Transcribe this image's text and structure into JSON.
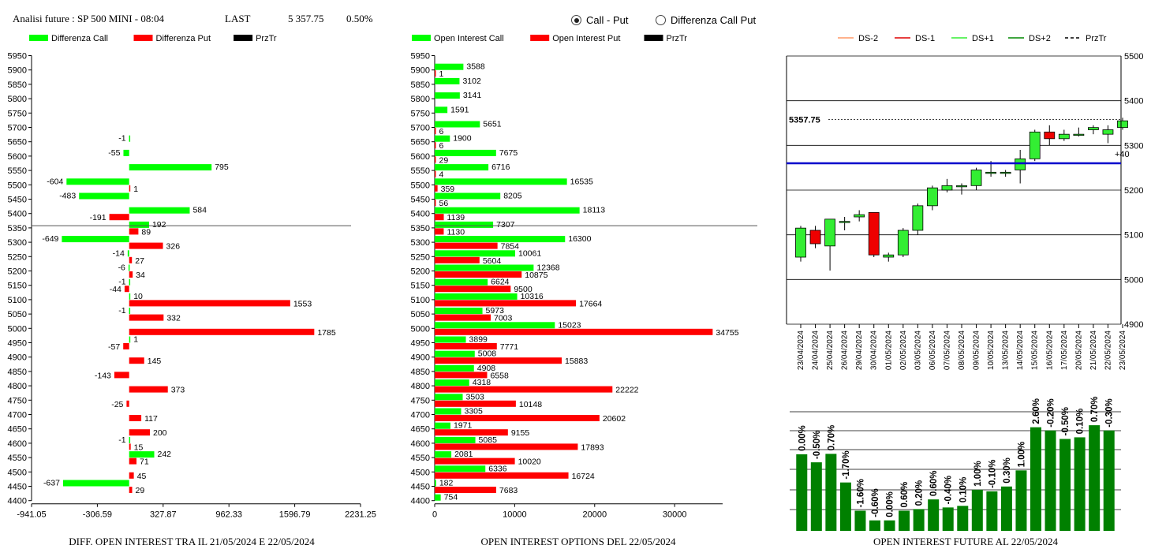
{
  "header": {
    "title": "Analisi future : SP 500 MINI - 08:04",
    "last_label": "LAST",
    "last_value": "5 357.75",
    "change": "0.50%"
  },
  "radios": [
    {
      "label": "Call - Put",
      "selected": true
    },
    {
      "label": "Differenza Call Put",
      "selected": false
    }
  ],
  "colors": {
    "green": "#00ff00",
    "red": "#ff0000",
    "black": "#000000",
    "dark_green": "#008000",
    "blue": "#0000cc"
  },
  "chart_data": [
    {
      "type": "bar",
      "orientation": "horizontal",
      "footer": "DIFF. OPEN INTEREST TRA IL 21/05/2024 E 22/05/2024",
      "legend": [
        "Differenza Call",
        "Differenza Put",
        "PrzTr"
      ],
      "categories": [
        5950,
        5900,
        5850,
        5800,
        5750,
        5700,
        5650,
        5600,
        5550,
        5500,
        5450,
        5400,
        5350,
        5300,
        5250,
        5200,
        5150,
        5100,
        5050,
        5000,
        4950,
        4900,
        4850,
        4800,
        4750,
        4700,
        4650,
        4600,
        4550,
        4500,
        4450,
        4400
      ],
      "series": [
        {
          "name": "Differenza Call",
          "values": [
            null,
            null,
            null,
            null,
            null,
            null,
            -1,
            -55,
            795,
            -604,
            -483,
            584,
            192,
            -649,
            -14,
            -6,
            -1,
            10,
            -1,
            null,
            1,
            null,
            null,
            null,
            null,
            null,
            null,
            -1,
            242,
            null,
            -637,
            null
          ]
        },
        {
          "name": "Differenza Put",
          "values": [
            null,
            null,
            null,
            null,
            null,
            null,
            null,
            null,
            null,
            1,
            null,
            -191,
            89,
            326,
            27,
            34,
            -44,
            1553,
            332,
            1785,
            -57,
            145,
            -143,
            373,
            -25,
            117,
            200,
            15,
            71,
            45,
            29,
            null
          ]
        }
      ],
      "xticks": [
        "-941.05",
        "-306.59",
        "327.87",
        "962.33",
        "1596.79",
        "2231.25"
      ],
      "xlim": [
        -941.05,
        2231.25
      ],
      "price_line": 5357.75
    },
    {
      "type": "bar",
      "orientation": "horizontal",
      "footer": "OPEN INTEREST OPTIONS DEL 22/05/2024",
      "legend": [
        "Open Interest Call",
        "Open Interest Put",
        "PrzTr"
      ],
      "categories": [
        5950,
        5900,
        5850,
        5800,
        5750,
        5700,
        5650,
        5600,
        5550,
        5500,
        5450,
        5400,
        5350,
        5300,
        5250,
        5200,
        5150,
        5100,
        5050,
        5000,
        4950,
        4900,
        4850,
        4800,
        4750,
        4700,
        4650,
        4600,
        4550,
        4500,
        4450,
        4400
      ],
      "series": [
        {
          "name": "Open Interest Call",
          "values": [
            null,
            3588,
            3102,
            3141,
            1591,
            5651,
            1900,
            7675,
            6716,
            16535,
            8205,
            18113,
            7307,
            16300,
            10061,
            12368,
            6624,
            10316,
            5973,
            15023,
            3899,
            5008,
            4908,
            4318,
            3503,
            3305,
            1971,
            5085,
            2081,
            6336,
            182,
            754
          ]
        },
        {
          "name": "Open Interest Put",
          "values": [
            null,
            1,
            null,
            null,
            null,
            6,
            6,
            29,
            4,
            359,
            56,
            1139,
            1130,
            7854,
            5604,
            10875,
            9500,
            17664,
            7003,
            34755,
            7771,
            15883,
            6558,
            22222,
            10148,
            20602,
            9155,
            17893,
            10020,
            16724,
            7683,
            null
          ]
        }
      ],
      "xticks": [
        "0",
        "10000",
        "20000",
        "30000"
      ],
      "xlim": [
        0,
        36000
      ],
      "price_line": 5357.75
    },
    {
      "type": "candlestick",
      "legend": [
        "DS-2",
        "DS-1",
        "DS+1",
        "DS+2",
        "PrzTr"
      ],
      "legend_colors": [
        "#ff9966",
        "#dd0000",
        "#33ee33",
        "#008800",
        "#000000"
      ],
      "last_label": "5357.75",
      "right_annotation": "+40",
      "blue_level": 5260,
      "yticks": [
        "5500",
        "5400",
        "5300",
        "5200",
        "5100",
        "5000",
        "4900"
      ],
      "ylim": [
        4900,
        5500
      ],
      "x": [
        "23/04/2024",
        "24/04/2024",
        "25/04/2024",
        "26/04/2024",
        "29/04/2024",
        "30/04/2024",
        "01/05/2024",
        "02/05/2024",
        "03/05/2024",
        "06/05/2024",
        "07/05/2024",
        "08/05/2024",
        "09/05/2024",
        "10/05/2024",
        "13/05/2024",
        "14/05/2024",
        "15/05/2024",
        "16/05/2024",
        "17/05/2024",
        "20/05/2024",
        "21/05/2024",
        "22/05/2024",
        "23/05/2024"
      ],
      "open": [
        5050,
        5110,
        5075,
        5130,
        5140,
        5150,
        5050,
        5055,
        5110,
        5165,
        5200,
        5210,
        5210,
        5240,
        5240,
        5245,
        5270,
        5330,
        5315,
        5325,
        5335,
        5325,
        5340
      ],
      "close": [
        5115,
        5080,
        5135,
        5130,
        5145,
        5055,
        5055,
        5110,
        5165,
        5205,
        5210,
        5210,
        5245,
        5240,
        5240,
        5270,
        5330,
        5315,
        5325,
        5325,
        5340,
        5335,
        5355
      ],
      "high": [
        5120,
        5120,
        5135,
        5140,
        5155,
        5150,
        5060,
        5115,
        5170,
        5210,
        5225,
        5215,
        5250,
        5265,
        5245,
        5290,
        5335,
        5345,
        5335,
        5340,
        5345,
        5345,
        5362
      ],
      "low": [
        5040,
        5070,
        5020,
        5110,
        5130,
        5050,
        5040,
        5050,
        5100,
        5155,
        5195,
        5190,
        5200,
        5230,
        5230,
        5215,
        5265,
        5300,
        5310,
        5320,
        5325,
        5305,
        5335
      ]
    },
    {
      "type": "bar",
      "footer": "OPEN INTEREST FUTURE AL 22/05/2024",
      "labels": [
        "0.00%",
        "-0.50%",
        "0.70%",
        "-1.70%",
        "-1.60%",
        "-0.60%",
        "0.00%",
        "0.60%",
        "0.20%",
        "0.60%",
        "-0.40%",
        "0.10%",
        "1.00%",
        "-0.10%",
        "0.30%",
        "1.00%",
        "2.60%",
        "-0.20%",
        "-0.50%",
        "0.10%",
        "0.70%",
        "-0.30%"
      ],
      "values": [
        2080000,
        2070000,
        2080500,
        2045000,
        2010000,
        1998000,
        1998000,
        2010000,
        2012000,
        2024000,
        2014000,
        2016000,
        2036000,
        2034000,
        2040000,
        2060000,
        2113500,
        2109500,
        2099000,
        2101000,
        2116000,
        2109500
      ]
    }
  ]
}
